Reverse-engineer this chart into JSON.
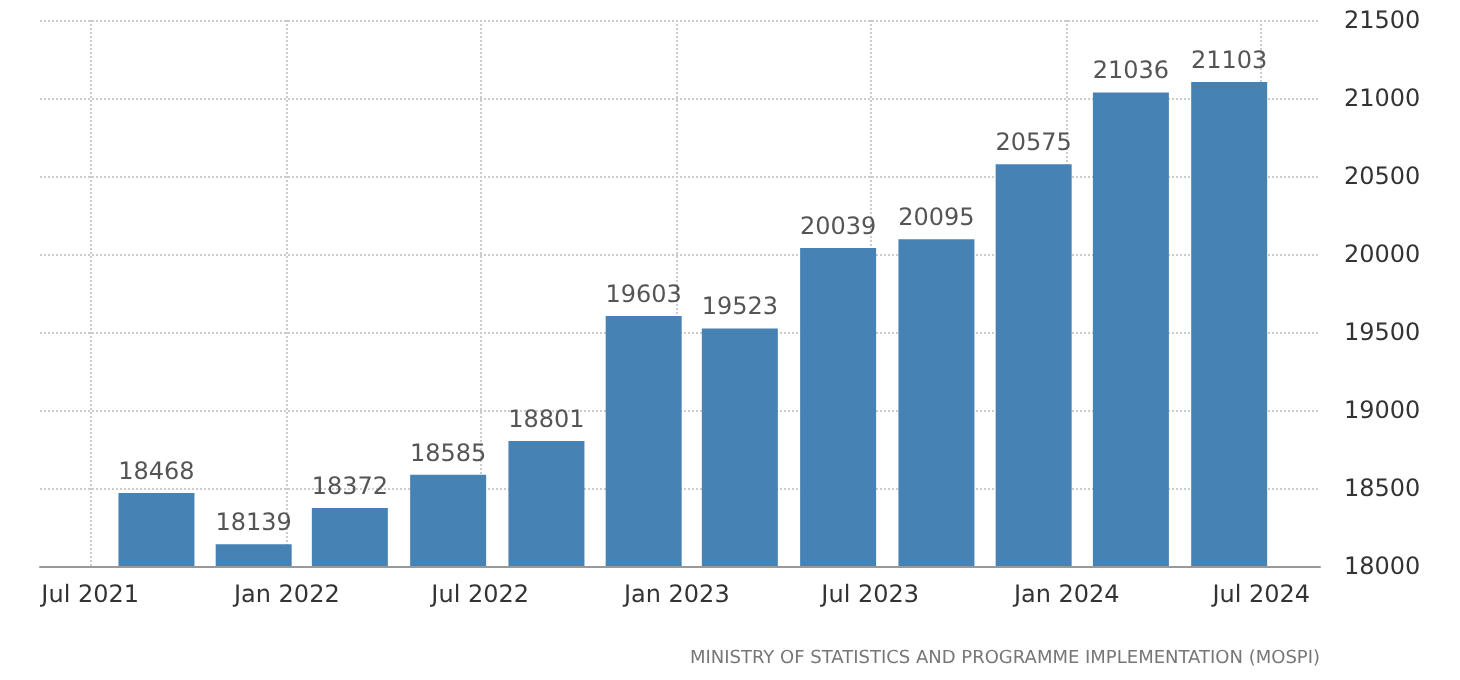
{
  "chart_data": {
    "type": "bar",
    "x": [
      "2021-09",
      "2021-12",
      "2022-03",
      "2022-06",
      "2022-09",
      "2022-12",
      "2023-03",
      "2023-06",
      "2023-09",
      "2023-12",
      "2024-03",
      "2024-06"
    ],
    "values": [
      18468,
      18139,
      18372,
      18585,
      18801,
      19603,
      19523,
      20039,
      20095,
      20575,
      21036,
      21103
    ],
    "color": "#4682b4",
    "data_labels": true,
    "grid": true,
    "ylim": [
      18000,
      21500
    ],
    "yticks": [
      18000,
      18500,
      19000,
      19500,
      20000,
      20500,
      21000,
      21500
    ],
    "xlim": [
      "2021-05-15",
      "2024-08-25"
    ],
    "xticks": [
      {
        "value": "2021-07",
        "label": "Jul 2021"
      },
      {
        "value": "2022-01",
        "label": "Jan 2022"
      },
      {
        "value": "2022-07",
        "label": "Jul 2022"
      },
      {
        "value": "2023-01",
        "label": "Jan 2023"
      },
      {
        "value": "2023-07",
        "label": "Jul 2023"
      },
      {
        "value": "2024-01",
        "label": "Jan 2024"
      },
      {
        "value": "2024-07",
        "label": "Jul 2024"
      }
    ],
    "annotations": [
      "MINISTRY OF STATISTICS AND PROGRAMME IMPLEMENTATION (MOSPI)"
    ]
  }
}
